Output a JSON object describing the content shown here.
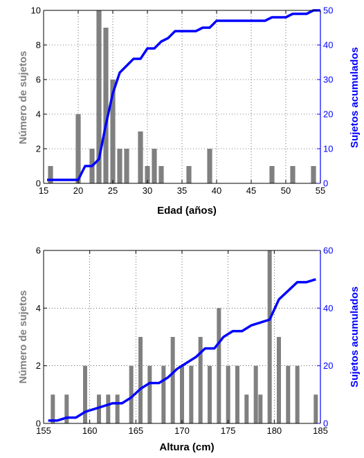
{
  "colors": {
    "bars": "#808080",
    "cumulative": "#0000ff",
    "axis": "#000000"
  },
  "chart_data": [
    {
      "type": "bar",
      "xlabel": "Edad (años)",
      "ylabel": "Número de sujetos",
      "y2label": "Sujetos acumulados",
      "xlim": [
        15,
        55
      ],
      "ylim": [
        0,
        10
      ],
      "y2lim": [
        0,
        50
      ],
      "xticks": [
        "15",
        "20",
        "25",
        "30",
        "35",
        "40",
        "45",
        "50",
        "55"
      ],
      "yticks": [
        "0",
        "2",
        "4",
        "6",
        "8",
        "10"
      ],
      "y2ticks": [
        "0",
        "10",
        "20",
        "30",
        "40",
        "50"
      ],
      "grid": "dotted",
      "bars": {
        "x": [
          16,
          20,
          22,
          23,
          24,
          25,
          26,
          27,
          29,
          30,
          31,
          32,
          36,
          39,
          48,
          51,
          54
        ],
        "values": [
          1,
          4,
          2,
          10,
          9,
          6,
          2,
          2,
          3,
          1,
          2,
          1,
          1,
          2,
          1,
          1,
          1
        ]
      },
      "cumulative": {
        "x": [
          15.5,
          20,
          21,
          22,
          23,
          24,
          25,
          26,
          27,
          28,
          29,
          30,
          31,
          32,
          33,
          34,
          35,
          36,
          37,
          38,
          39,
          40,
          41,
          42,
          43,
          44,
          45,
          46,
          47,
          48,
          49,
          50,
          51,
          52,
          53,
          54,
          55
        ],
        "values": [
          1,
          1,
          5,
          5,
          7,
          17,
          26,
          32,
          34,
          36,
          36,
          39,
          39,
          41,
          42,
          44,
          44,
          44,
          44,
          45,
          45,
          47,
          47,
          47,
          47,
          47,
          47,
          47,
          47,
          48,
          48,
          48,
          49,
          49,
          49,
          50,
          50
        ]
      }
    },
    {
      "type": "bar",
      "xlabel": "Altura (cm)",
      "ylabel": "Número de sujetos",
      "y2label": "Sujetos acumulados",
      "xlim": [
        155,
        185
      ],
      "ylim": [
        0,
        6
      ],
      "y2lim": [
        0,
        60
      ],
      "xticks": [
        "155",
        "160",
        "165",
        "170",
        "175",
        "180",
        "185"
      ],
      "yticks": [
        "0",
        "2",
        "4",
        "6"
      ],
      "y2ticks": [
        "0",
        "20",
        "40",
        "60"
      ],
      "grid": "dotted",
      "bars": {
        "x": [
          156,
          157.5,
          159.5,
          161,
          162,
          163,
          164.5,
          165.5,
          166.5,
          168,
          169,
          170,
          171,
          172,
          173,
          174,
          175,
          176,
          177,
          178,
          178.5,
          179.5,
          180.5,
          181.5,
          182.5,
          184.5
        ],
        "values": [
          1,
          1,
          2,
          1,
          1,
          1,
          2,
          3,
          2,
          2,
          3,
          2,
          2,
          3,
          2,
          4,
          2,
          2,
          1,
          2,
          1,
          6,
          3,
          2,
          2,
          1
        ]
      },
      "cumulative": {
        "x": [
          155.5,
          156.5,
          157.5,
          158.5,
          159.5,
          160.5,
          161.5,
          162.5,
          163.5,
          164.5,
          165.5,
          166.5,
          167.5,
          168.5,
          169.5,
          170.5,
          171.5,
          172.5,
          173.5,
          174.5,
          175.5,
          176.5,
          177.5,
          178.5,
          179.5,
          180.5,
          181.5,
          182.5,
          183.5,
          184.5
        ],
        "values": [
          1,
          1,
          2,
          2,
          4,
          5,
          6,
          7,
          7,
          9,
          12,
          14,
          14,
          16,
          19,
          21,
          23,
          26,
          26,
          30,
          32,
          32,
          34,
          35,
          36,
          43,
          46,
          49,
          49,
          50
        ]
      }
    }
  ]
}
